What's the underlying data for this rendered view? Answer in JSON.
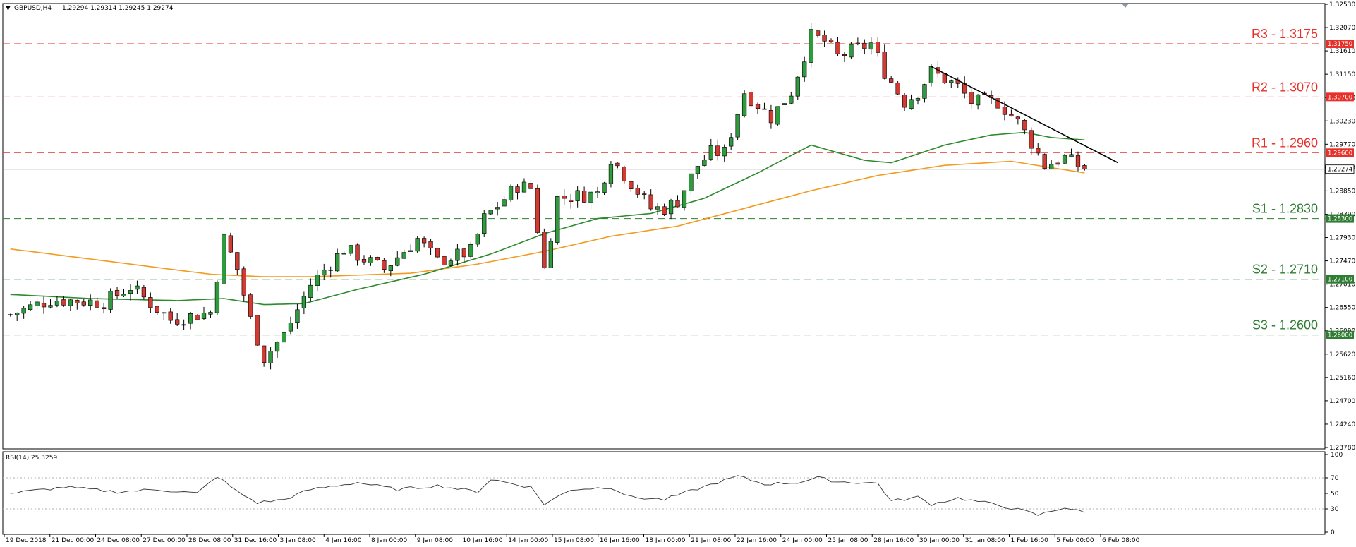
{
  "chart_data": [
    {
      "type": "candlestick",
      "symbol": "GBPUSD,H4",
      "ohlc_header": "1.29294 1.29314 1.29245 1.29274",
      "last_price": "1.29274",
      "ylim": [
        1.2378,
        1.3253
      ],
      "y_ticks": [
        "1.32530",
        "1.32070",
        "1.31610",
        "1.31150",
        "1.30690",
        "1.30230",
        "1.29770",
        "1.29310",
        "1.28850",
        "1.28390",
        "1.27930",
        "1.27470",
        "1.27010",
        "1.26550",
        "1.26090",
        "1.25620",
        "1.25160",
        "1.24700",
        "1.24240",
        "1.23780"
      ],
      "x_ticks": [
        "19 Dec 2018",
        "21 Dec 00:00",
        "24 Dec 08:00",
        "27 Dec 00:00",
        "28 Dec 08:00",
        "31 Dec 16:00",
        "3 Jan 08:00",
        "4 Jan 16:00",
        "8 Jan 00:00",
        "9 Jan 08:00",
        "10 Jan 16:00",
        "14 Jan 00:00",
        "15 Jan 08:00",
        "16 Jan 16:00",
        "18 Jan 00:00",
        "21 Jan 08:00",
        "22 Jan 16:00",
        "24 Jan 00:00",
        "25 Jan 08:00",
        "28 Jan 16:00",
        "30 Jan 00:00",
        "31 Jan 08:00",
        "1 Feb 16:00",
        "5 Feb 00:00",
        "6 Feb 08:00"
      ],
      "levels": [
        {
          "name": "R3 - 1.3175",
          "value": 1.3175,
          "tag": "1.31750",
          "color": "#e8302a"
        },
        {
          "name": "R2 - 1.3070",
          "value": 1.307,
          "tag": "1.30700",
          "color": "#e8302a"
        },
        {
          "name": "R1 - 1.2960",
          "value": 1.296,
          "tag": "1.29600",
          "color": "#e8302a"
        },
        {
          "name": "S1 - 1.2830",
          "value": 1.283,
          "tag": "1.28300",
          "color": "#2e7d32"
        },
        {
          "name": "S2 - 1.2710",
          "value": 1.271,
          "tag": "1.27100",
          "color": "#2e7d32"
        },
        {
          "name": "S3 - 1.2600",
          "value": 1.26,
          "tag": "1.26000",
          "color": "#2e7d32"
        }
      ],
      "bar_count": 162,
      "anchors": [
        [
          0,
          1.264
        ],
        [
          6,
          1.267
        ],
        [
          14,
          1.2665
        ],
        [
          18,
          1.2695
        ],
        [
          24,
          1.263
        ],
        [
          30,
          1.2645
        ],
        [
          32,
          1.279
        ],
        [
          34,
          1.273
        ],
        [
          36,
          1.263
        ],
        [
          38,
          1.2555
        ],
        [
          41,
          1.26
        ],
        [
          45,
          1.27
        ],
        [
          50,
          1.277
        ],
        [
          56,
          1.273
        ],
        [
          61,
          1.279
        ],
        [
          64,
          1.2745
        ],
        [
          69,
          1.2765
        ],
        [
          71,
          1.283
        ],
        [
          76,
          1.2895
        ],
        [
          78,
          1.289
        ],
        [
          80,
          1.273
        ],
        [
          82,
          1.287
        ],
        [
          88,
          1.288
        ],
        [
          90,
          1.295
        ],
        [
          93,
          1.29
        ],
        [
          96,
          1.285
        ],
        [
          98,
          1.285
        ],
        [
          100,
          1.2865
        ],
        [
          103,
          1.2935
        ],
        [
          105,
          1.296
        ],
        [
          107,
          1.296
        ],
        [
          110,
          1.308
        ],
        [
          114,
          1.303
        ],
        [
          117,
          1.308
        ],
        [
          120,
          1.319
        ],
        [
          122,
          1.318
        ],
        [
          124,
          1.315
        ],
        [
          129,
          1.3175
        ],
        [
          131,
          1.312
        ],
        [
          134,
          1.306
        ],
        [
          136,
          1.308
        ],
        [
          138,
          1.312
        ],
        [
          142,
          1.309
        ],
        [
          144,
          1.306
        ],
        [
          148,
          1.306
        ],
        [
          151,
          1.302
        ],
        [
          153,
          1.298
        ],
        [
          155,
          1.2935
        ],
        [
          158,
          1.295
        ],
        [
          161,
          1.2927
        ]
      ],
      "ma_slow": [
        [
          0,
          1.277
        ],
        [
          15,
          1.2745
        ],
        [
          30,
          1.272
        ],
        [
          38,
          1.2715
        ],
        [
          45,
          1.2715
        ],
        [
          60,
          1.2722
        ],
        [
          70,
          1.274
        ],
        [
          80,
          1.2765
        ],
        [
          90,
          1.2795
        ],
        [
          100,
          1.2815
        ],
        [
          110,
          1.285
        ],
        [
          120,
          1.2885
        ],
        [
          130,
          1.2915
        ],
        [
          140,
          1.2935
        ],
        [
          150,
          1.2943
        ],
        [
          161,
          1.292
        ]
      ],
      "ma_fast": [
        [
          0,
          1.268
        ],
        [
          12,
          1.2672
        ],
        [
          25,
          1.2668
        ],
        [
          32,
          1.2672
        ],
        [
          38,
          1.266
        ],
        [
          44,
          1.2662
        ],
        [
          52,
          1.269
        ],
        [
          62,
          1.272
        ],
        [
          72,
          1.276
        ],
        [
          80,
          1.28
        ],
        [
          88,
          1.283
        ],
        [
          96,
          1.284
        ],
        [
          104,
          1.287
        ],
        [
          112,
          1.292
        ],
        [
          120,
          1.2975
        ],
        [
          128,
          1.2945
        ],
        [
          132,
          1.294
        ],
        [
          140,
          1.2975
        ],
        [
          147,
          1.2995
        ],
        [
          152,
          1.3
        ],
        [
          156,
          1.299
        ],
        [
          161,
          1.2985
        ]
      ],
      "trendline": [
        [
          138,
          1.313
        ],
        [
          166,
          1.294
        ]
      ]
    },
    {
      "type": "line",
      "indicator_label": "RSI(14) 25.3259",
      "ylim": [
        0,
        100
      ],
      "y_ticks": [
        100,
        70,
        50,
        30,
        0
      ],
      "reference_lines": [
        70,
        30
      ],
      "anchors": [
        [
          0,
          50
        ],
        [
          8,
          58
        ],
        [
          16,
          52
        ],
        [
          22,
          55
        ],
        [
          28,
          50
        ],
        [
          31,
          72
        ],
        [
          34,
          52
        ],
        [
          37,
          38
        ],
        [
          41,
          42
        ],
        [
          45,
          55
        ],
        [
          52,
          64
        ],
        [
          58,
          55
        ],
        [
          64,
          60
        ],
        [
          70,
          52
        ],
        [
          72,
          68
        ],
        [
          78,
          58
        ],
        [
          80,
          36
        ],
        [
          84,
          55
        ],
        [
          90,
          58
        ],
        [
          93,
          45
        ],
        [
          98,
          42
        ],
        [
          103,
          56
        ],
        [
          109,
          72
        ],
        [
          113,
          62
        ],
        [
          118,
          64
        ],
        [
          121,
          70
        ],
        [
          124,
          65
        ],
        [
          130,
          63
        ],
        [
          132,
          40
        ],
        [
          136,
          45
        ],
        [
          138,
          36
        ],
        [
          142,
          44
        ],
        [
          148,
          35
        ],
        [
          152,
          27
        ],
        [
          154,
          22
        ],
        [
          156,
          27
        ],
        [
          158,
          32
        ],
        [
          161,
          25
        ]
      ]
    }
  ]
}
